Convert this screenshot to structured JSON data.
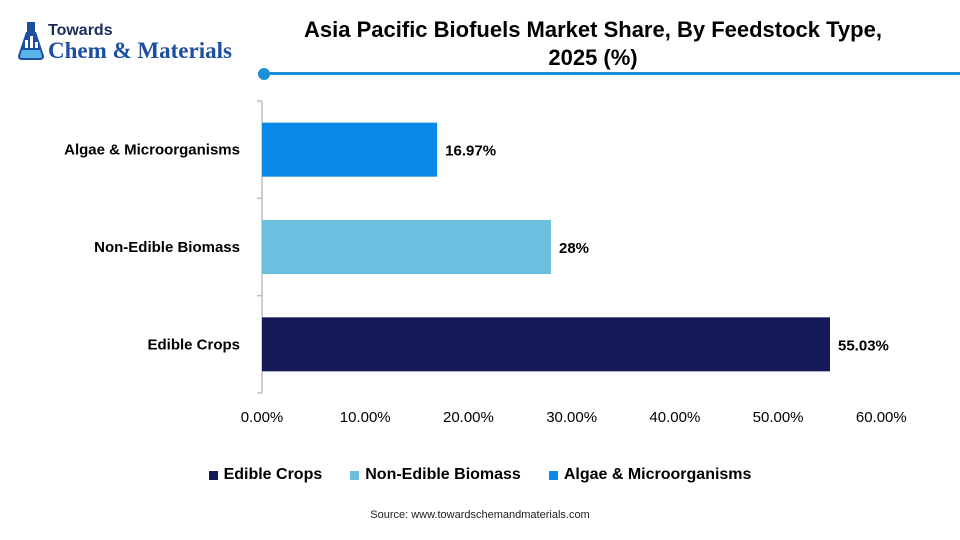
{
  "logo": {
    "towards": "Towards",
    "brand": "Chem & Materials"
  },
  "title": {
    "line1": "Asia Pacific Biofuels Market Share, By Feedstock Type,",
    "line2": "2025 (%)"
  },
  "colors": {
    "accent": "#1a8fd6",
    "edible": "#131a57",
    "non_edible": "#6dbfdf",
    "algae": "#0a8ae8"
  },
  "chart_data": {
    "type": "bar",
    "orientation": "horizontal",
    "categories": [
      "Algae & Microorganisms",
      "Non-Edible Biomass",
      "Edible Crops"
    ],
    "values": [
      16.97,
      28,
      55.03
    ],
    "value_labels": [
      "16.97%",
      "28%",
      "55.03%"
    ],
    "colors": [
      "#0a8ae8",
      "#6dbfdf",
      "#131a57"
    ],
    "xlim": [
      0,
      60
    ],
    "x_ticks": [
      0,
      10,
      20,
      30,
      40,
      50,
      60
    ],
    "x_tick_labels": [
      "0.00%",
      "10.00%",
      "20.00%",
      "30.00%",
      "40.00%",
      "50.00%",
      "60.00%"
    ],
    "grid": false,
    "legend_position": "bottom",
    "legend": [
      {
        "name": "Edible Crops",
        "color": "#131a57"
      },
      {
        "name": "Non-Edible Biomass",
        "color": "#6dbfdf"
      },
      {
        "name": "Algae & Microorganisms",
        "color": "#0a8ae8"
      }
    ]
  },
  "source": "Source: www.towardschemandmaterials.com"
}
